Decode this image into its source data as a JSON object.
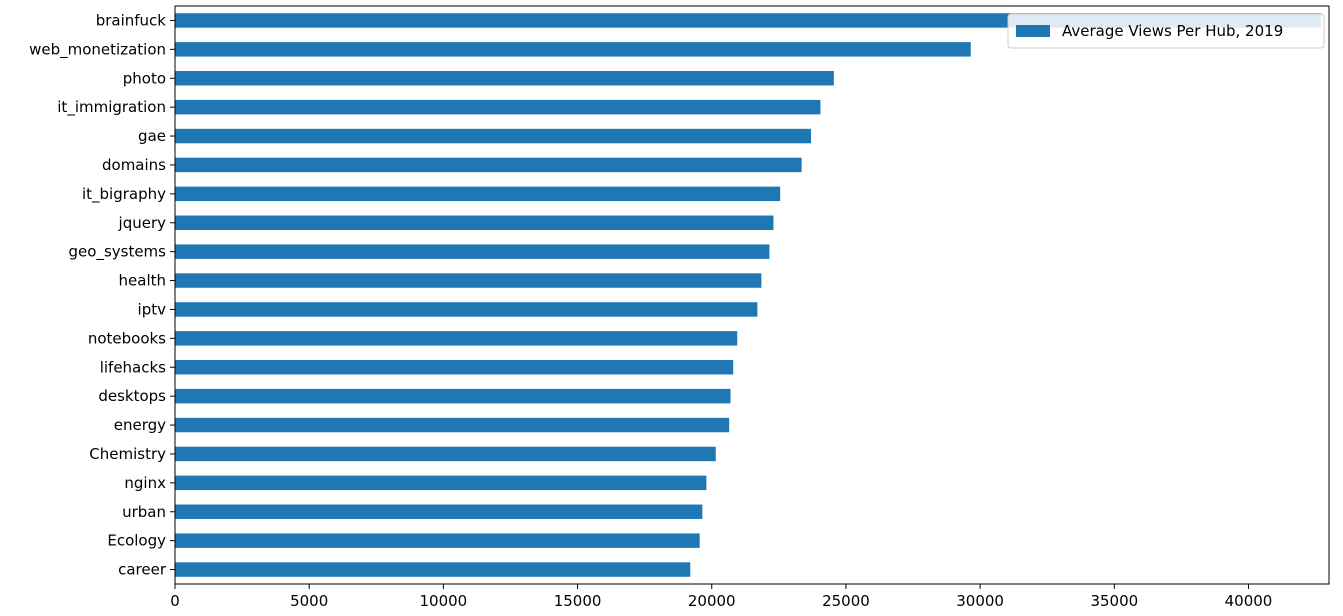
{
  "chart_data": {
    "type": "bar",
    "orientation": "horizontal",
    "categories": [
      "brainfuck",
      "web_monetization",
      "photo",
      "it_immigration",
      "gae",
      "domains",
      "it_bigraphy",
      "jquery",
      "geo_systems",
      "health",
      "iptv",
      "notebooks",
      "lifehacks",
      "desktops",
      "energy",
      "Chemistry",
      "nginx",
      "urban",
      "Ecology",
      "career"
    ],
    "series": [
      {
        "name": "Average Views Per Hub, 2019",
        "color": "#1f77b4",
        "values": [
          42700,
          29650,
          24550,
          24050,
          23700,
          23350,
          22550,
          22300,
          22150,
          21850,
          21700,
          20950,
          20800,
          20700,
          20650,
          20150,
          19800,
          19650,
          19550,
          19200
        ]
      }
    ],
    "xlim": [
      0,
      43000
    ],
    "xticks": [
      0,
      5000,
      10000,
      15000,
      20000,
      25000,
      30000,
      35000,
      40000
    ],
    "xtick_labels": [
      "0",
      "5000",
      "10000",
      "15000",
      "20000",
      "25000",
      "30000",
      "35000",
      "40000"
    ],
    "legend": {
      "position": "top-right",
      "entries": [
        "Average Views Per Hub, 2019"
      ]
    },
    "grid": false
  }
}
